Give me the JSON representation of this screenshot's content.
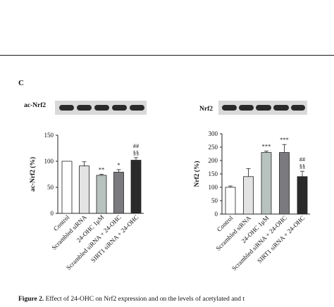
{
  "figure": {
    "panel_letter": "C",
    "caption_label": "Figure 2.",
    "caption_text": "Effect of 24-OHC on Nrf2 expression and on the levels of acetylated and t"
  },
  "blots": [
    {
      "label": "ac-Nrf2"
    },
    {
      "label": "Nrf2"
    }
  ],
  "chart_data": [
    {
      "type": "bar",
      "categories": [
        "Control",
        "Scrambled siRNA",
        "24-OHC 1μM",
        "Scrambled siRNA + 24-OHC",
        "SIRT1 siRNA + 24-OHC"
      ],
      "values": [
        100,
        91,
        73,
        79,
        102
      ],
      "errors": [
        0,
        8,
        2,
        5,
        5
      ],
      "significance": [
        "",
        "",
        "**",
        "*",
        "##\n§§"
      ],
      "bar_colors": [
        "#ffffff",
        "#e3e3e3",
        "#b8c2bf",
        "#7a7a7f",
        "#2a2a2a"
      ],
      "ylabel": "ac-Nrf2 (%)",
      "ylim": [
        0,
        150
      ],
      "yticks": [
        0,
        50,
        100,
        150
      ],
      "grid": false
    },
    {
      "type": "bar",
      "categories": [
        "Control",
        "Scrambled siRNA",
        "24-OHC 1μM",
        "Scrambled siRNA + 24-OHC",
        "SIRT1 siRNA + 24-OHC"
      ],
      "values": [
        100,
        140,
        230,
        230,
        140
      ],
      "errors": [
        5,
        30,
        5,
        30,
        20
      ],
      "significance": [
        "",
        "",
        "***",
        "***",
        "##\n§§"
      ],
      "bar_colors": [
        "#ffffff",
        "#e3e3e3",
        "#b8c2bf",
        "#7a7a7f",
        "#2a2a2a"
      ],
      "ylabel": "Nrf2 (%)",
      "ylim": [
        0,
        300
      ],
      "yticks": [
        0,
        50,
        100,
        150,
        200,
        250,
        300
      ],
      "grid": false
    }
  ]
}
